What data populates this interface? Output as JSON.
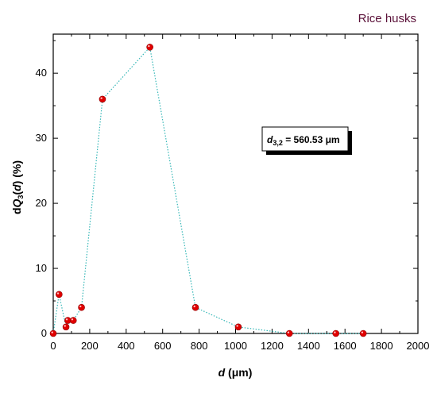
{
  "chart_data": {
    "type": "scatter",
    "title": "Rice husks",
    "xlabel": {
      "prefix": "d",
      "unit": " (μm)"
    },
    "ylabel": {
      "d": "d",
      "Q": "Q",
      "sub": "3",
      "open": "(",
      "var": "d",
      "close": ")",
      "unit": " (%)"
    },
    "xlim": [
      0,
      2000
    ],
    "ylim": [
      0,
      46
    ],
    "xticks": [
      0,
      200,
      400,
      600,
      800,
      1000,
      1200,
      1400,
      1600,
      1800,
      2000
    ],
    "yticks": [
      0,
      10,
      20,
      30,
      40
    ],
    "grid": false,
    "series": [
      {
        "x": [
          0,
          32,
          70,
          80,
          110,
          155,
          270,
          530,
          780,
          1015,
          1295,
          1550,
          1700
        ],
        "y": [
          0,
          6,
          1,
          2,
          2,
          4,
          36,
          44,
          4,
          1,
          0,
          0,
          0
        ],
        "marker_color": "#e00000",
        "line_color": "#35b7b7",
        "line_style": "dotted"
      }
    ],
    "annotation": {
      "var": "d",
      "sub": "3,2",
      "text": " = 560.53 μm"
    }
  }
}
